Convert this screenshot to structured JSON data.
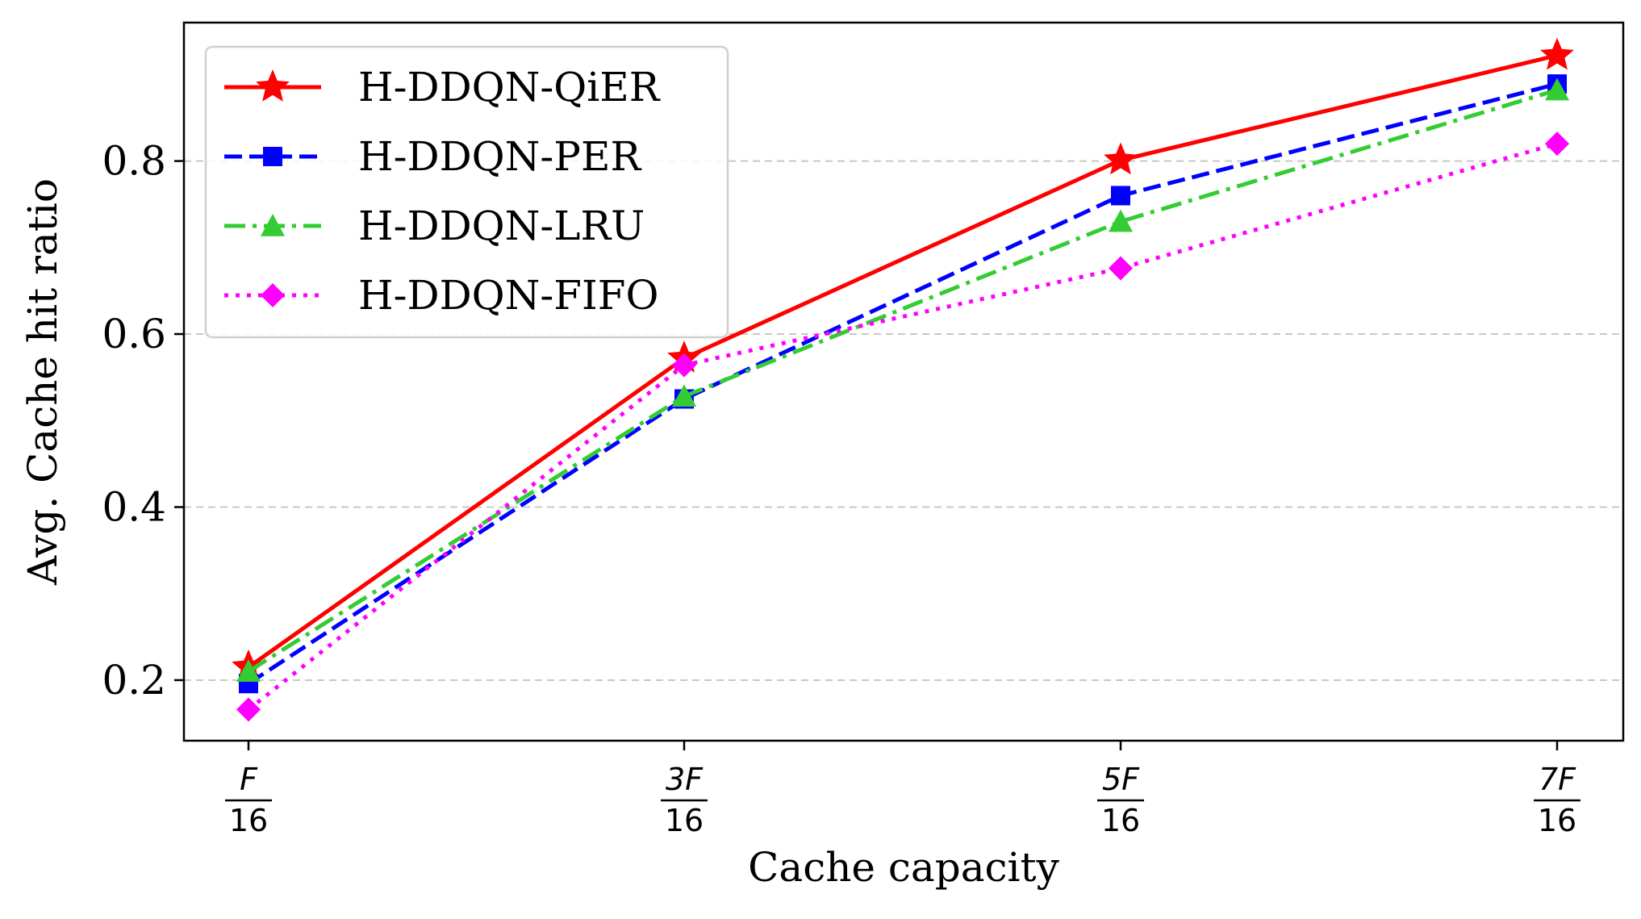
{
  "chart_data": {
    "type": "line",
    "title": "",
    "xlabel": "Cache capacity",
    "ylabel": "Avg. Cache hit ratio",
    "categories": [
      {
        "num": "F",
        "den": "16"
      },
      {
        "num": "3F",
        "den": "16"
      },
      {
        "num": "5F",
        "den": "16"
      },
      {
        "num": "7F",
        "den": "16"
      }
    ],
    "ylim": [
      0.13,
      0.96
    ],
    "yticks": [
      "0.2",
      "0.4",
      "0.6",
      "0.8"
    ],
    "grid": "horizontal dashed",
    "legend_position": "upper-left",
    "series": [
      {
        "name": "H-DDQN-QiER",
        "color": "#ff0000",
        "linestyle": "solid",
        "marker": "star",
        "values": [
          0.215,
          0.572,
          0.801,
          0.922
        ]
      },
      {
        "name": "H-DDQN-PER",
        "color": "#0000ff",
        "linestyle": "dashed",
        "marker": "square",
        "values": [
          0.196,
          0.525,
          0.76,
          0.889
        ]
      },
      {
        "name": "H-DDQN-LRU",
        "color": "#33cc33",
        "linestyle": "dashdot",
        "marker": "triangle",
        "values": [
          0.21,
          0.528,
          0.73,
          0.882
        ]
      },
      {
        "name": "H-DDQN-FIFO",
        "color": "#ff00ff",
        "linestyle": "dotted",
        "marker": "diamond",
        "values": [
          0.166,
          0.564,
          0.676,
          0.82
        ]
      }
    ]
  }
}
